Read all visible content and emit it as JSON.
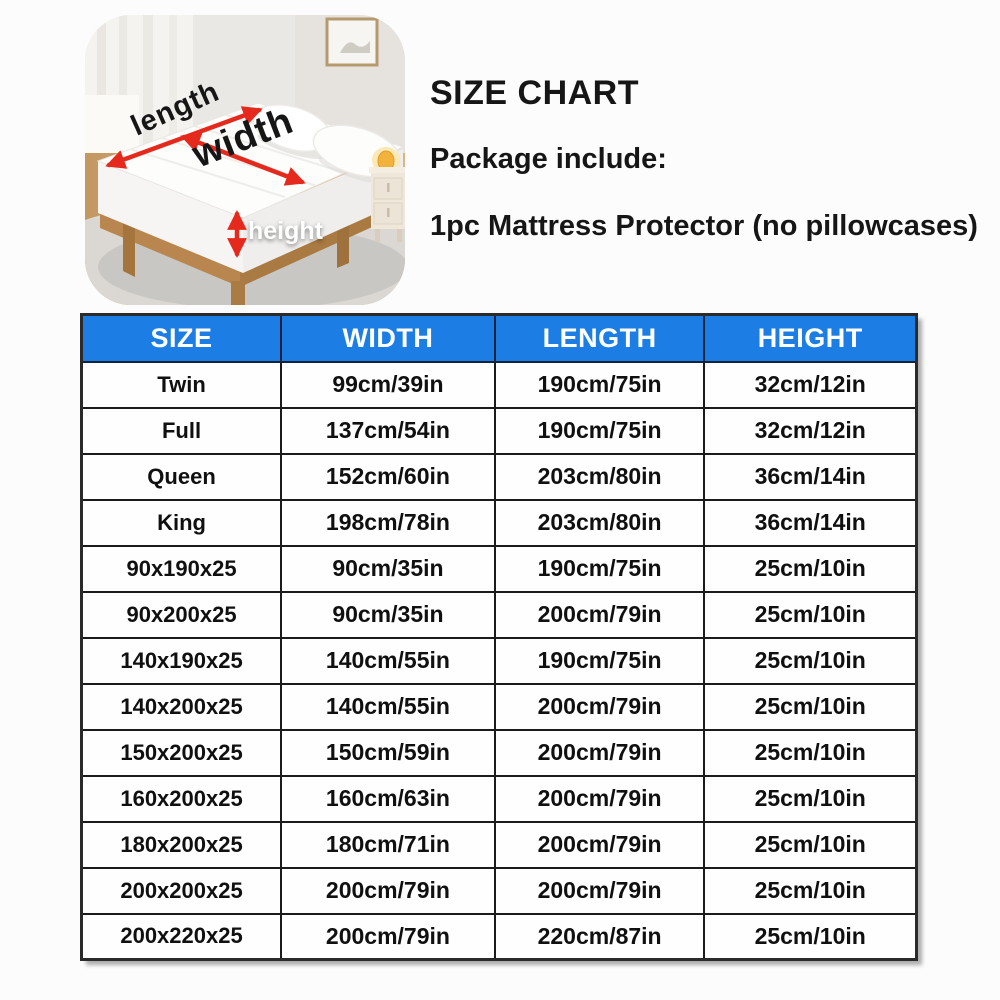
{
  "photo": {
    "description": "bedroom photo of mattress with dimension arrows",
    "labels": {
      "length": "length",
      "width": "width",
      "height": "height"
    },
    "arrow_color": "#e52a1d"
  },
  "header": {
    "title": "SIZE CHART",
    "package_heading": "Package include:",
    "package_item": "1pc Mattress Protector (no pillowcases)"
  },
  "table": {
    "header_bg": "#1c7ee5",
    "header_text_color": "#ffffff"
  },
  "chart_data": {
    "type": "table",
    "title": "SIZE CHART",
    "columns": [
      "SIZE",
      "WIDTH",
      "LENGTH",
      "HEIGHT"
    ],
    "rows": [
      [
        "Twin",
        "99cm/39in",
        "190cm/75in",
        "32cm/12in"
      ],
      [
        "Full",
        "137cm/54in",
        "190cm/75in",
        "32cm/12in"
      ],
      [
        "Queen",
        "152cm/60in",
        "203cm/80in",
        "36cm/14in"
      ],
      [
        "King",
        "198cm/78in",
        "203cm/80in",
        "36cm/14in"
      ],
      [
        "90x190x25",
        "90cm/35in",
        "190cm/75in",
        "25cm/10in"
      ],
      [
        "90x200x25",
        "90cm/35in",
        "200cm/79in",
        "25cm/10in"
      ],
      [
        "140x190x25",
        "140cm/55in",
        "190cm/75in",
        "25cm/10in"
      ],
      [
        "140x200x25",
        "140cm/55in",
        "200cm/79in",
        "25cm/10in"
      ],
      [
        "150x200x25",
        "150cm/59in",
        "200cm/79in",
        "25cm/10in"
      ],
      [
        "160x200x25",
        "160cm/63in",
        "200cm/79in",
        "25cm/10in"
      ],
      [
        "180x200x25",
        "180cm/71in",
        "200cm/79in",
        "25cm/10in"
      ],
      [
        "200x200x25",
        "200cm/79in",
        "200cm/79in",
        "25cm/10in"
      ],
      [
        "200x220x25",
        "200cm/79in",
        "220cm/87in",
        "25cm/10in"
      ]
    ]
  }
}
